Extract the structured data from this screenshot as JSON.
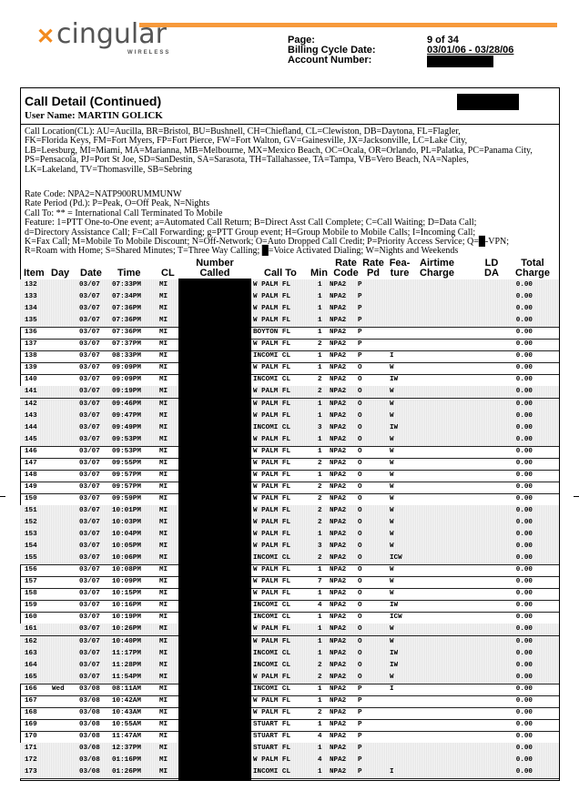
{
  "brand": {
    "name": "cingular",
    "sub": "WIRELESS",
    "accent": "#f7993b"
  },
  "header": {
    "page_label": "Page:",
    "page_value": "9 of 34",
    "cycle_label": "Billing Cycle Date:",
    "cycle_value": "03/01/06 - 03/28/06",
    "account_label": "Account Number:"
  },
  "section": {
    "title": "Call Detail (Continued)",
    "user": "User Name: MARTIN GOLICK"
  },
  "legend": {
    "call_location": [
      "Call Location(CL):  AU=Aucilla, BR=Bristol, BU=Bushnell, CH=Chiefland, CL=Clewiston, DB=Daytona, FL=Flagler,",
      "FK=Florida Keys, FM=Fort Myers, FP=Fort Pierce, FW=Fort Walton, GV=Gainesville, JX=Jacksonville, LC=Lake City,",
      "LB=Leesburg, MI=Miami, MA=Marianna, MB=Melbourne, MX=Mexico Beach, OC=Ocala, OR=Orlando, PL=Palatka, PC=Panama City,",
      "PS=Pensacola, PJ=Port St Joe, SD=SanDestin, SA=Sarasota, TH=Tallahassee, TA=Tampa, VB=Vero Beach, NA=Naples,",
      "LK=Lakeland, TV=Thomasville, SB=Sebring"
    ],
    "other": [
      "Rate Code: NPA2=NATP900RUMMUNW",
      "Rate Period (Pd.): P=Peak, O=Off Peak, N=Nights",
      "Call To: ** = International Call Terminated To Mobile",
      "Feature:  1=PTT One-to-One event; a=Automated Call Return; B=Direct Asst Call Complete; C=Call Waiting; D=Data Call;",
      "d=Directory Assistance Call; F=Call Forwarding; g=PTT Group event; H=Group Mobile to Mobile Calls; I=Incoming Call;",
      "K=Fax Call; M=Mobile To Mobile Discount; N=Off-Network; O=Auto Dropped Call Credit; P=Priority Access Service; Q=█-VPN;",
      "R=Roam with Home; S=Shared Minutes; T=Three Way Calling; █=Voice Activated Dialing; W=Nights and Weekends"
    ]
  },
  "columns": {
    "item": "Item",
    "day": "Day",
    "date": "Date",
    "time": "Time",
    "cl": "CL",
    "number_1": "Number",
    "number_2": "Called",
    "call_to": "Call To",
    "min": "Min",
    "rate_code_1": "Rate",
    "rate_code_2": "Code",
    "rate_pd_1": "Rate",
    "rate_pd_2": "Pd",
    "feature_1": "Fea-",
    "feature_2": "ture",
    "airtime_1": "Airtime",
    "airtime_2": "Charge",
    "ld_1": "LD",
    "ld_2": "DA",
    "total_1": "Total",
    "total_2": "Charge"
  },
  "rows": [
    [
      "132",
      "",
      "03/07",
      "07:33PM",
      "MI",
      "W PALM FL",
      "1",
      "NPA2",
      "P",
      "",
      "0.00"
    ],
    [
      "133",
      "",
      "03/07",
      "07:34PM",
      "MI",
      "W PALM FL",
      "1",
      "NPA2",
      "P",
      "",
      "0.00"
    ],
    [
      "134",
      "",
      "03/07",
      "07:36PM",
      "MI",
      "W PALM FL",
      "1",
      "NPA2",
      "P",
      "",
      "0.00"
    ],
    [
      "135",
      "",
      "03/07",
      "07:36PM",
      "MI",
      "W PALM FL",
      "1",
      "NPA2",
      "P",
      "",
      "0.00"
    ],
    [
      "136",
      "",
      "03/07",
      "07:36PM",
      "MI",
      "BOYTON FL",
      "1",
      "NPA2",
      "P",
      "",
      "0.00"
    ],
    [
      "137",
      "",
      "03/07",
      "07:37PM",
      "MI",
      "W PALM FL",
      "2",
      "NPA2",
      "P",
      "",
      "0.00"
    ],
    [
      "138",
      "",
      "03/07",
      "08:33PM",
      "MI",
      "INCOMI CL",
      "1",
      "NPA2",
      "P",
      "I",
      "0.00"
    ],
    [
      "139",
      "",
      "03/07",
      "09:09PM",
      "MI",
      "W PALM FL",
      "1",
      "NPA2",
      "O",
      "W",
      "0.00"
    ],
    [
      "140",
      "",
      "03/07",
      "09:09PM",
      "MI",
      "INCOMI CL",
      "2",
      "NPA2",
      "O",
      "IW",
      "0.00"
    ],
    [
      "141",
      "",
      "03/07",
      "09:19PM",
      "MI",
      "W PALM FL",
      "2",
      "NPA2",
      "O",
      "W",
      "0.00"
    ],
    [
      "142",
      "",
      "03/07",
      "09:46PM",
      "MI",
      "W PALM FL",
      "1",
      "NPA2",
      "O",
      "W",
      "0.00"
    ],
    [
      "143",
      "",
      "03/07",
      "09:47PM",
      "MI",
      "W PALM FL",
      "1",
      "NPA2",
      "O",
      "W",
      "0.00"
    ],
    [
      "144",
      "",
      "03/07",
      "09:49PM",
      "MI",
      "INCOMI CL",
      "3",
      "NPA2",
      "O",
      "IW",
      "0.00"
    ],
    [
      "145",
      "",
      "03/07",
      "09:53PM",
      "MI",
      "W PALM FL",
      "1",
      "NPA2",
      "O",
      "W",
      "0.00"
    ],
    [
      "146",
      "",
      "03/07",
      "09:53PM",
      "MI",
      "W PALM FL",
      "1",
      "NPA2",
      "O",
      "W",
      "0.00"
    ],
    [
      "147",
      "",
      "03/07",
      "09:55PM",
      "MI",
      "W PALM FL",
      "2",
      "NPA2",
      "O",
      "W",
      "0.00"
    ],
    [
      "148",
      "",
      "03/07",
      "09:57PM",
      "MI",
      "W PALM FL",
      "1",
      "NPA2",
      "O",
      "W",
      "0.00"
    ],
    [
      "149",
      "",
      "03/07",
      "09:57PM",
      "MI",
      "W PALM FL",
      "2",
      "NPA2",
      "O",
      "W",
      "0.00"
    ],
    [
      "150",
      "",
      "03/07",
      "09:59PM",
      "MI",
      "W PALM FL",
      "2",
      "NPA2",
      "O",
      "W",
      "0.00"
    ],
    [
      "151",
      "",
      "03/07",
      "10:01PM",
      "MI",
      "W PALM FL",
      "2",
      "NPA2",
      "O",
      "W",
      "0.00"
    ],
    [
      "152",
      "",
      "03/07",
      "10:03PM",
      "MI",
      "W PALM FL",
      "2",
      "NPA2",
      "O",
      "W",
      "0.00"
    ],
    [
      "153",
      "",
      "03/07",
      "10:04PM",
      "MI",
      "W PALM FL",
      "1",
      "NPA2",
      "O",
      "W",
      "0.00"
    ],
    [
      "154",
      "",
      "03/07",
      "10:05PM",
      "MI",
      "W PALM FL",
      "3",
      "NPA2",
      "O",
      "W",
      "0.00"
    ],
    [
      "155",
      "",
      "03/07",
      "10:06PM",
      "MI",
      "INCOMI CL",
      "2",
      "NPA2",
      "O",
      "ICW",
      "0.00"
    ],
    [
      "156",
      "",
      "03/07",
      "10:08PM",
      "MI",
      "W PALM FL",
      "1",
      "NPA2",
      "O",
      "W",
      "0.00"
    ],
    [
      "157",
      "",
      "03/07",
      "10:09PM",
      "MI",
      "W PALM FL",
      "7",
      "NPA2",
      "O",
      "W",
      "0.00"
    ],
    [
      "158",
      "",
      "03/07",
      "10:15PM",
      "MI",
      "W PALM FL",
      "1",
      "NPA2",
      "O",
      "W",
      "0.00"
    ],
    [
      "159",
      "",
      "03/07",
      "10:16PM",
      "MI",
      "INCOMI CL",
      "4",
      "NPA2",
      "O",
      "IW",
      "0.00"
    ],
    [
      "160",
      "",
      "03/07",
      "10:19PM",
      "MI",
      "INCOMI CL",
      "1",
      "NPA2",
      "O",
      "ICW",
      "0.00"
    ],
    [
      "161",
      "",
      "03/07",
      "10:26PM",
      "MI",
      "W PALM FL",
      "1",
      "NPA2",
      "O",
      "W",
      "0.00"
    ],
    [
      "162",
      "",
      "03/07",
      "10:40PM",
      "MI",
      "W PALM FL",
      "1",
      "NPA2",
      "O",
      "W",
      "0.00"
    ],
    [
      "163",
      "",
      "03/07",
      "11:17PM",
      "MI",
      "INCOMI CL",
      "1",
      "NPA2",
      "O",
      "IW",
      "0.00"
    ],
    [
      "164",
      "",
      "03/07",
      "11:28PM",
      "MI",
      "INCOMI CL",
      "2",
      "NPA2",
      "O",
      "IW",
      "0.00"
    ],
    [
      "165",
      "",
      "03/07",
      "11:54PM",
      "MI",
      "W PALM FL",
      "2",
      "NPA2",
      "O",
      "W",
      "0.00"
    ],
    [
      "166",
      "Wed",
      "03/08",
      "08:11AM",
      "MI",
      "INCOMI CL",
      "1",
      "NPA2",
      "P",
      "I",
      "0.00"
    ],
    [
      "167",
      "",
      "03/08",
      "10:42AM",
      "MI",
      "W PALM FL",
      "1",
      "NPA2",
      "P",
      "",
      "0.00"
    ],
    [
      "168",
      "",
      "03/08",
      "10:43AM",
      "MI",
      "W PALM FL",
      "2",
      "NPA2",
      "P",
      "",
      "0.00"
    ],
    [
      "169",
      "",
      "03/08",
      "10:55AM",
      "MI",
      "STUART FL",
      "1",
      "NPA2",
      "P",
      "",
      "0.00"
    ],
    [
      "170",
      "",
      "03/08",
      "11:47AM",
      "MI",
      "STUART FL",
      "4",
      "NPA2",
      "P",
      "",
      "0.00"
    ],
    [
      "171",
      "",
      "03/08",
      "12:37PM",
      "MI",
      "STUART FL",
      "1",
      "NPA2",
      "P",
      "",
      "0.00"
    ],
    [
      "172",
      "",
      "03/08",
      "01:16PM",
      "MI",
      "W PALM FL",
      "4",
      "NPA2",
      "P",
      "",
      "0.00"
    ],
    [
      "173",
      "",
      "03/08",
      "01:26PM",
      "MI",
      "INCOMI CL",
      "1",
      "NPA2",
      "P",
      "I",
      "0.00"
    ]
  ]
}
